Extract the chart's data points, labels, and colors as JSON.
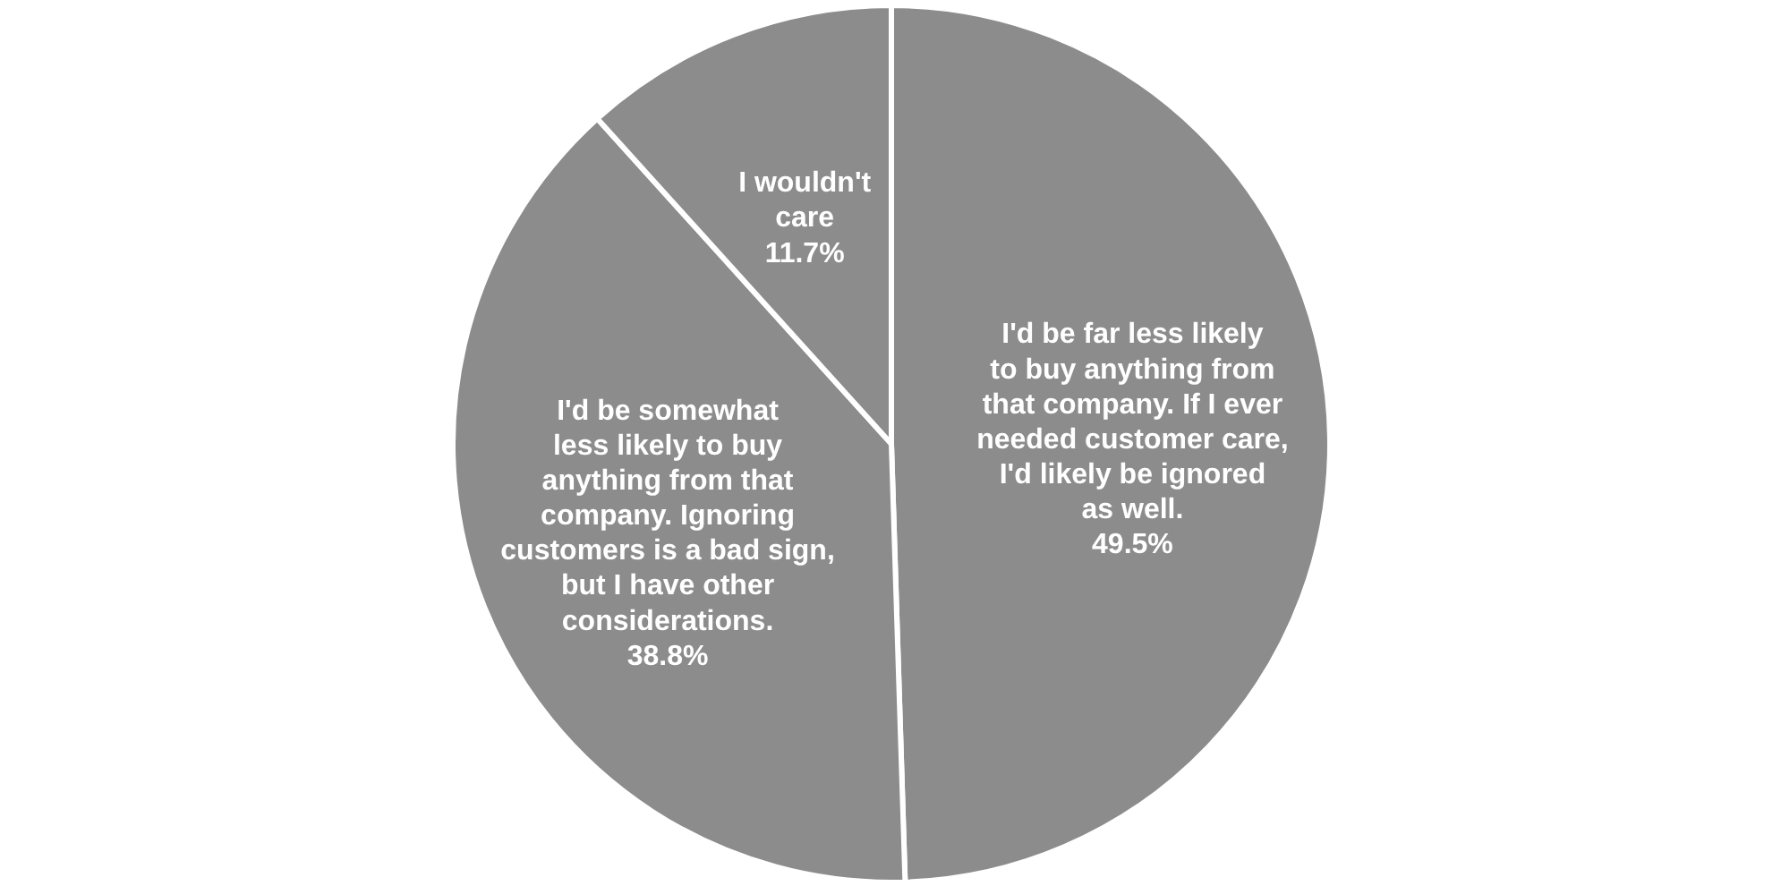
{
  "chart_data": {
    "type": "pie",
    "categories": [
      "I'd be far less likely\nto buy anything from\nthat company. If I ever\nneeded customer care,\nI'd likely be ignored\nas well.",
      "I'd be somewhat\nless likely to buy\nanything from that\ncompany. Ignoring\ncustomers is a bad sign,\nbut I have other\nconsiderations.",
      "I wouldn't\ncare"
    ],
    "values": [
      49.5,
      38.8,
      11.7
    ],
    "value_labels": [
      "49.5%",
      "38.8%",
      "11.7%"
    ],
    "colors": [
      "#8c8c8c",
      "#8c8c8c",
      "#8c8c8c"
    ]
  }
}
